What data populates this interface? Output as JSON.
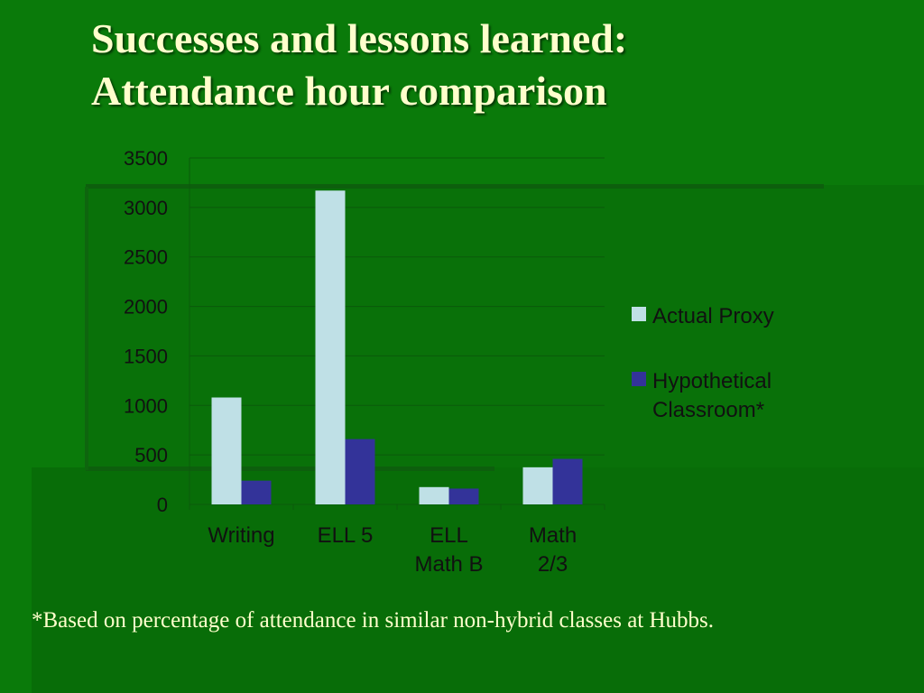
{
  "slide": {
    "title_line1": "Successes and lessons learned:",
    "title_line2": "Attendance hour comparison",
    "footnote": "*Based on percentage of attendance in similar non-hybrid classes at Hubbs."
  },
  "colors": {
    "background": "#0a7a0a",
    "title_text": "#ffffcc",
    "series_actual": "#bfe0e6",
    "series_hypothetical": "#333399"
  },
  "chart_data": {
    "type": "bar",
    "title": "",
    "xlabel": "",
    "ylabel": "",
    "categories": [
      [
        "Writing"
      ],
      [
        "ELL 5"
      ],
      [
        "ELL",
        "Math B"
      ],
      [
        "Math",
        "2/3"
      ]
    ],
    "series": [
      {
        "name": "Actual Proxy",
        "values": [
          1080,
          3170,
          175,
          375
        ]
      },
      {
        "name": "Hypothetical Classroom*",
        "values": [
          240,
          660,
          160,
          460
        ]
      }
    ],
    "ylim": [
      0,
      3500
    ],
    "yticks": [
      0,
      500,
      1000,
      1500,
      2000,
      2500,
      3000,
      3500
    ],
    "grid": true,
    "legend_position": "right"
  }
}
